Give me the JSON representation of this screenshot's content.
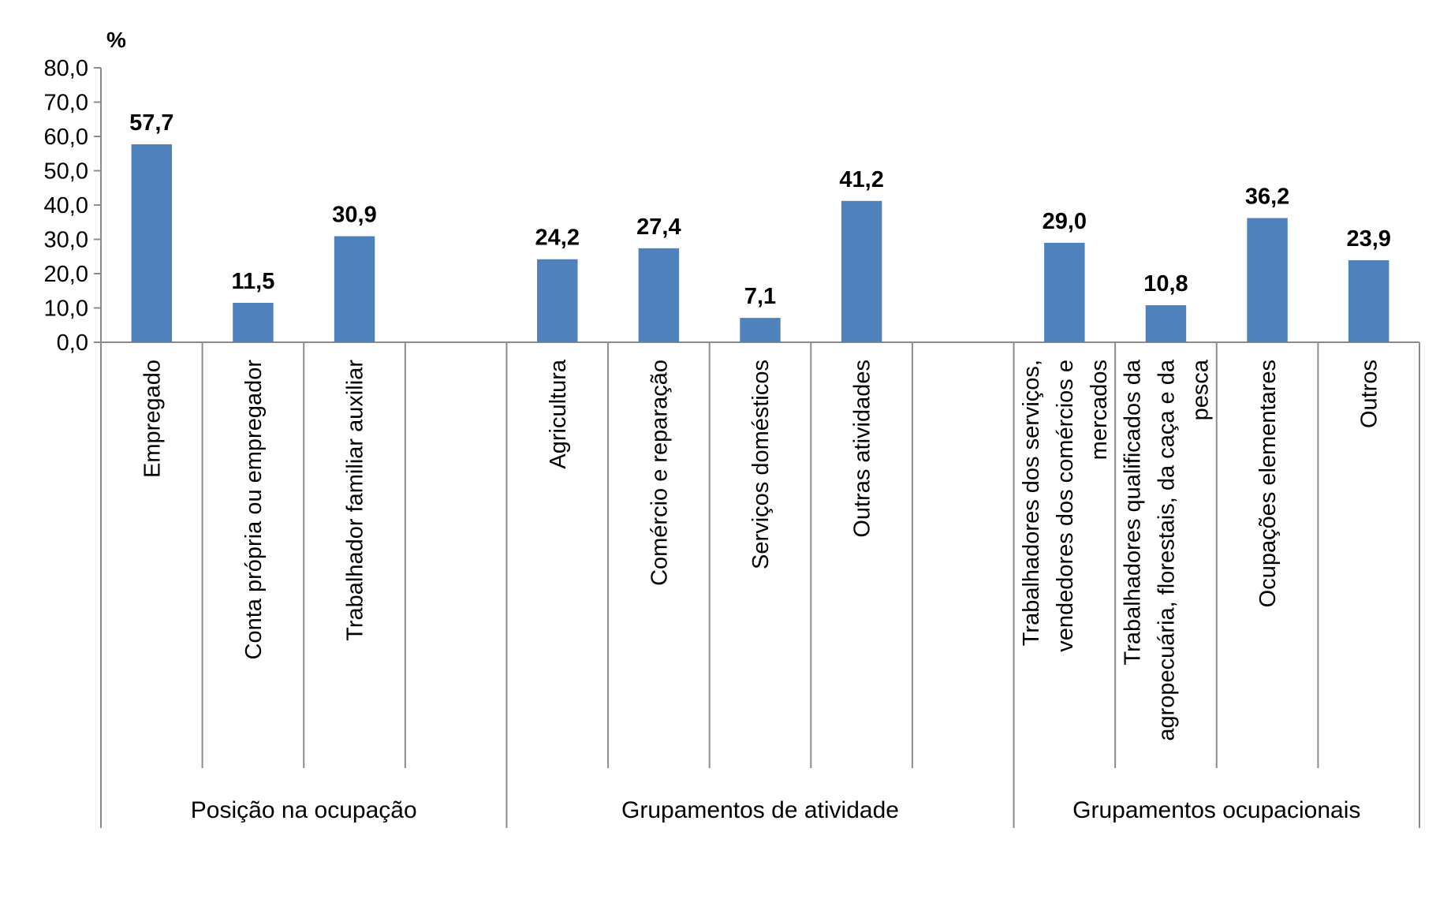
{
  "chart_data": {
    "type": "bar",
    "y_unit_label": "%",
    "ylim": [
      0,
      80
    ],
    "ytick_step": 10,
    "ytick_labels": [
      "0,0",
      "10,0",
      "20,0",
      "30,0",
      "40,0",
      "50,0",
      "60,0",
      "70,0",
      "80,0"
    ],
    "grid": false,
    "legend": "none",
    "bar_color": "#4f81bd",
    "groups": [
      {
        "name": "Posição na ocupação",
        "categories": [
          {
            "label": [
              "Empregado"
            ],
            "value": 57.7,
            "value_label": "57,7"
          },
          {
            "label": [
              "Conta própria ou empregador"
            ],
            "value": 11.5,
            "value_label": "11,5"
          },
          {
            "label": [
              "Trabalhador familiar auxiliar"
            ],
            "value": 30.9,
            "value_label": "30,9"
          },
          {
            "label": [],
            "value": null,
            "value_label": ""
          }
        ]
      },
      {
        "name": "Grupamentos de atividade",
        "categories": [
          {
            "label": [
              "Agricultura"
            ],
            "value": 24.2,
            "value_label": "24,2"
          },
          {
            "label": [
              "Comércio e reparação"
            ],
            "value": 27.4,
            "value_label": "27,4"
          },
          {
            "label": [
              "Serviços domésticos"
            ],
            "value": 7.1,
            "value_label": "7,1"
          },
          {
            "label": [
              "Outras atividades"
            ],
            "value": 41.2,
            "value_label": "41,2"
          },
          {
            "label": [],
            "value": null,
            "value_label": ""
          }
        ]
      },
      {
        "name": "Grupamentos ocupacionais",
        "categories": [
          {
            "label": [
              "Trabalhadores dos serviços,",
              "vendedores dos comércios e",
              "mercados"
            ],
            "value": 29.0,
            "value_label": "29,0"
          },
          {
            "label": [
              "Trabalhadores qualificados da",
              "agropecuária, florestais, da caça e da",
              "pesca"
            ],
            "value": 10.8,
            "value_label": "10,8"
          },
          {
            "label": [
              "Ocupações elementares"
            ],
            "value": 36.2,
            "value_label": "36,2"
          },
          {
            "label": [
              "Outros"
            ],
            "value": 23.9,
            "value_label": "23,9"
          }
        ]
      }
    ]
  }
}
